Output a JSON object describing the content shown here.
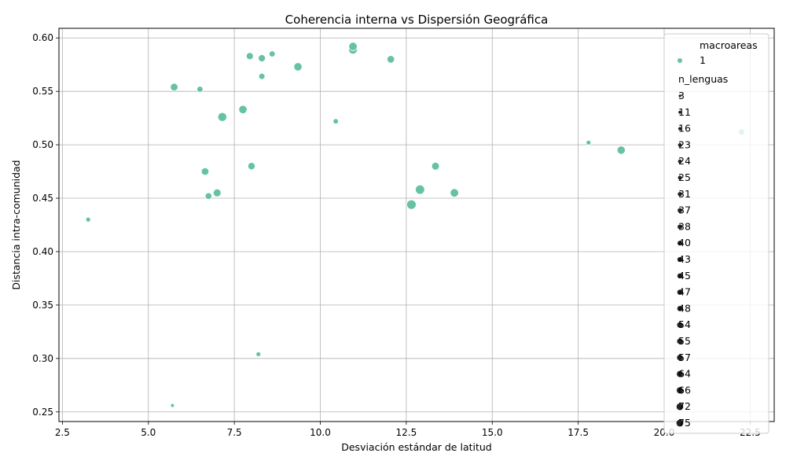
{
  "chart_data": {
    "type": "scatter",
    "title": "Coherencia interna vs Dispersión Geográfica",
    "xlabel": "Desviación estándar de latitud",
    "ylabel": "Distancia intra-comunidad",
    "xlim": [
      2.4,
      23.2
    ],
    "ylim": [
      0.241,
      0.609
    ],
    "xticks": [
      2.5,
      5.0,
      7.5,
      10.0,
      12.5,
      15.0,
      17.5,
      20.0,
      22.5
    ],
    "xtick_labels": [
      "2.5",
      "5.0",
      "7.5",
      "10.0",
      "12.5",
      "15.0",
      "17.5",
      "20.0",
      "22.5"
    ],
    "yticks": [
      0.25,
      0.3,
      0.35,
      0.4,
      0.45,
      0.5,
      0.55,
      0.6
    ],
    "ytick_labels": [
      "0.25",
      "0.30",
      "0.35",
      "0.40",
      "0.45",
      "0.50",
      "0.55",
      "0.60"
    ],
    "grid": true,
    "color": "#66c2a5",
    "legend": {
      "placement": "top-right",
      "hue_title": "macroareas",
      "hue_entries": [
        "1"
      ],
      "size_title": "n_lenguas",
      "size_entries": [
        "3",
        "11",
        "16",
        "23",
        "24",
        "25",
        "31",
        "37",
        "38",
        "40",
        "43",
        "45",
        "47",
        "48",
        "54",
        "55",
        "57",
        "64",
        "66",
        "72",
        "75"
      ]
    },
    "series": [
      {
        "points": [
          {
            "x": 3.25,
            "y": 0.43,
            "size": 11
          },
          {
            "x": 5.7,
            "y": 0.256,
            "size": 3
          },
          {
            "x": 5.75,
            "y": 0.554,
            "size": 45
          },
          {
            "x": 6.5,
            "y": 0.552,
            "size": 24
          },
          {
            "x": 6.65,
            "y": 0.475,
            "size": 43
          },
          {
            "x": 6.75,
            "y": 0.452,
            "size": 31
          },
          {
            "x": 7.0,
            "y": 0.455,
            "size": 48
          },
          {
            "x": 7.15,
            "y": 0.526,
            "size": 66
          },
          {
            "x": 7.75,
            "y": 0.533,
            "size": 55
          },
          {
            "x": 7.95,
            "y": 0.583,
            "size": 37
          },
          {
            "x": 8.0,
            "y": 0.48,
            "size": 40
          },
          {
            "x": 8.2,
            "y": 0.304,
            "size": 11
          },
          {
            "x": 8.3,
            "y": 0.564,
            "size": 25
          },
          {
            "x": 8.3,
            "y": 0.581,
            "size": 38
          },
          {
            "x": 8.6,
            "y": 0.585,
            "size": 24
          },
          {
            "x": 9.35,
            "y": 0.573,
            "size": 54
          },
          {
            "x": 10.45,
            "y": 0.522,
            "size": 16
          },
          {
            "x": 10.95,
            "y": 0.589,
            "size": 64
          },
          {
            "x": 10.95,
            "y": 0.592,
            "size": 57
          },
          {
            "x": 12.05,
            "y": 0.58,
            "size": 43
          },
          {
            "x": 12.65,
            "y": 0.444,
            "size": 75
          },
          {
            "x": 12.9,
            "y": 0.458,
            "size": 72
          },
          {
            "x": 13.35,
            "y": 0.48,
            "size": 47
          },
          {
            "x": 13.9,
            "y": 0.455,
            "size": 57
          },
          {
            "x": 17.8,
            "y": 0.502,
            "size": 11
          },
          {
            "x": 18.75,
            "y": 0.495,
            "size": 54
          },
          {
            "x": 22.25,
            "y": 0.512,
            "size": 23
          }
        ]
      }
    ]
  }
}
